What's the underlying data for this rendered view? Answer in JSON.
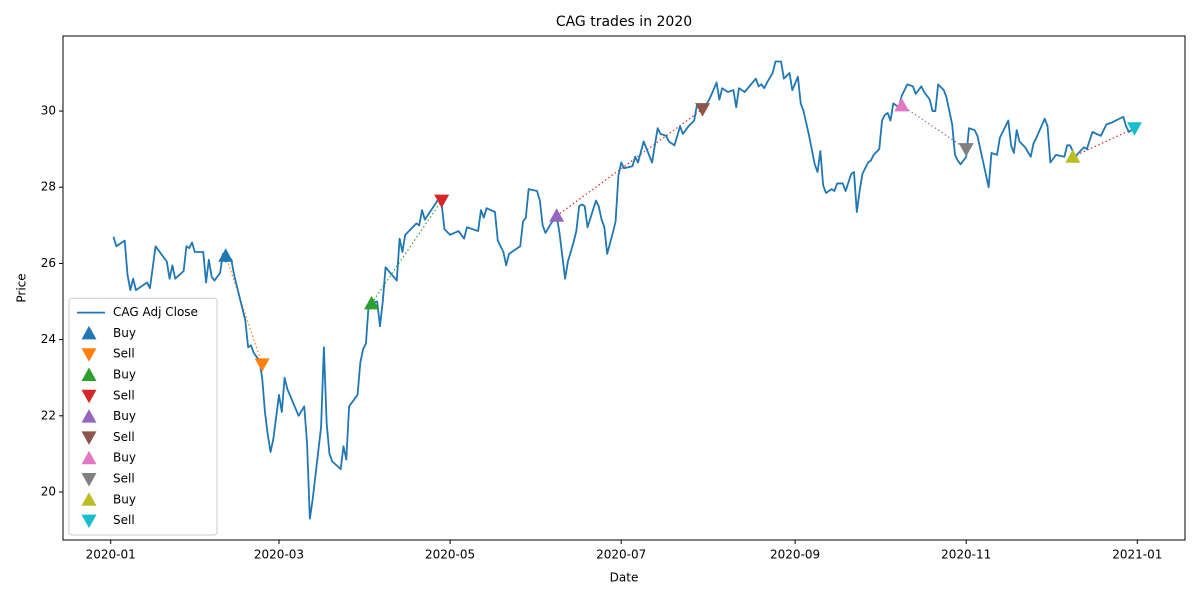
{
  "chart_data": {
    "type": "line",
    "title": "CAG trades in 2020",
    "xlabel": "Date",
    "ylabel": "Price",
    "xlim": [
      18245,
      18645
    ],
    "ylim": [
      18.74,
      31.97
    ],
    "xticks": [
      {
        "value": 18262,
        "label": "2020-01"
      },
      {
        "value": 18322,
        "label": "2020-03"
      },
      {
        "value": 18383,
        "label": "2020-05"
      },
      {
        "value": 18444,
        "label": "2020-07"
      },
      {
        "value": 18506,
        "label": "2020-09"
      },
      {
        "value": 18567,
        "label": "2020-11"
      },
      {
        "value": 18628,
        "label": "2021-01"
      }
    ],
    "yticks": [
      20,
      22,
      24,
      26,
      28,
      30
    ],
    "grid": false,
    "legend": "lower left",
    "series": [
      {
        "name": "CAG Adj Close",
        "color": "#1f77b4",
        "x": [
          18263,
          18264,
          18267,
          18268,
          18269,
          18270,
          18271,
          18275,
          18276,
          18278,
          18282,
          18283,
          18284,
          18285,
          18288,
          18289,
          18290,
          18291,
          18292,
          18295,
          18296,
          18297,
          18298,
          18299,
          18301,
          18302,
          18303,
          18305,
          18306,
          18310,
          18311,
          18312,
          18313,
          18315,
          18316,
          18317,
          18318,
          18319,
          18320,
          18322,
          18323,
          18324,
          18325,
          18329,
          18331,
          18332,
          18333,
          18334,
          18337,
          18338,
          18339,
          18340,
          18341,
          18344,
          18345,
          18346,
          18347,
          18350,
          18351,
          18352,
          18353,
          18354,
          18357,
          18358,
          18359,
          18360,
          18364,
          18365,
          18366,
          18367,
          18371,
          18372,
          18373,
          18374,
          18379,
          18380,
          18381,
          18383,
          18386,
          18388,
          18389,
          18393,
          18394,
          18395,
          18396,
          18399,
          18400,
          18402,
          18403,
          18404,
          18408,
          18409,
          18410,
          18411,
          18414,
          18415,
          18416,
          18417,
          18419,
          18421,
          18422,
          18424,
          18425,
          18427,
          18428,
          18429,
          18430,
          18431,
          18432,
          18435,
          18436,
          18437,
          18438,
          18439,
          18441,
          18442,
          18443,
          18444,
          18445,
          18448,
          18449,
          18450,
          18452,
          18455,
          18457,
          18458,
          18460,
          18461,
          18463,
          18465,
          18466,
          18468,
          18470,
          18471,
          18473,
          18475,
          18476,
          18478,
          18479,
          18480,
          18482,
          18484,
          18485,
          18486,
          18488,
          18492,
          18493,
          18494,
          18495,
          18496,
          18498,
          18499,
          18501,
          18502,
          18504,
          18505,
          18507,
          18508,
          18509,
          18511,
          18513,
          18514,
          18515,
          18516,
          18517,
          18519,
          18520,
          18521,
          18523,
          18524,
          18526,
          18527,
          18528,
          18529,
          18530,
          18532,
          18533,
          18534,
          18536,
          18537,
          18538,
          18539,
          18540,
          18541,
          18543,
          18544,
          18546,
          18548,
          18549,
          18550,
          18551,
          18552,
          18554,
          18555,
          18556,
          18557,
          18559,
          18560,
          18562,
          18563,
          18564,
          18565,
          18567,
          18568,
          18570,
          18571,
          18575,
          18576,
          18578,
          18579,
          18582,
          18583,
          18584,
          18585,
          18586,
          18588,
          18590,
          18591,
          18592,
          18595,
          18596,
          18597,
          18599,
          18602,
          18603,
          18604,
          18606,
          18607,
          18609,
          18610,
          18612,
          18615,
          18617,
          18619,
          18623,
          18624,
          18625,
          18627
        ],
        "values": [
          26.7,
          26.45,
          26.6,
          25.7,
          25.3,
          25.6,
          25.3,
          25.5,
          25.35,
          26.45,
          26.05,
          25.6,
          25.95,
          25.6,
          25.8,
          26.45,
          26.4,
          26.55,
          26.3,
          26.3,
          25.5,
          26.1,
          25.65,
          25.55,
          25.75,
          26.25,
          26.05,
          26.1,
          25.7,
          24.5,
          23.8,
          23.85,
          23.65,
          23.45,
          23.0,
          22.1,
          21.5,
          21.05,
          21.4,
          22.55,
          22.1,
          23.0,
          22.7,
          22.0,
          22.25,
          21.3,
          19.3,
          19.8,
          21.7,
          23.8,
          21.8,
          21.0,
          20.8,
          20.6,
          21.2,
          20.85,
          22.25,
          22.55,
          23.4,
          23.75,
          23.9,
          24.95,
          25.0,
          24.35,
          25.0,
          25.9,
          25.55,
          26.65,
          26.3,
          26.75,
          27.05,
          27.0,
          27.4,
          27.15,
          27.7,
          27.55,
          26.9,
          26.75,
          26.85,
          26.65,
          26.95,
          26.85,
          27.4,
          27.2,
          27.45,
          27.35,
          26.6,
          26.3,
          25.95,
          26.25,
          26.45,
          27.1,
          27.2,
          27.95,
          27.9,
          27.65,
          27.0,
          26.8,
          27.05,
          27.25,
          26.8,
          25.6,
          26.05,
          26.55,
          26.85,
          27.5,
          27.55,
          27.5,
          26.95,
          27.65,
          27.5,
          27.15,
          26.95,
          26.25,
          26.8,
          27.1,
          28.3,
          28.65,
          28.5,
          28.55,
          28.8,
          28.65,
          29.2,
          28.65,
          29.55,
          29.4,
          29.35,
          29.2,
          29.1,
          29.6,
          29.4,
          29.6,
          29.75,
          30.15,
          30.05,
          30.25,
          30.4,
          30.75,
          30.3,
          30.6,
          30.5,
          30.55,
          30.1,
          30.6,
          30.5,
          30.85,
          30.65,
          30.7,
          30.6,
          30.75,
          31.0,
          31.3,
          31.3,
          30.85,
          31.0,
          30.55,
          30.9,
          30.2,
          30.0,
          29.35,
          28.6,
          28.4,
          28.95,
          28.05,
          27.85,
          27.95,
          27.9,
          28.1,
          28.1,
          27.9,
          28.35,
          28.4,
          27.35,
          27.9,
          28.35,
          28.65,
          28.7,
          28.85,
          29.0,
          29.75,
          29.9,
          29.95,
          29.75,
          30.2,
          30.1,
          30.4,
          30.7,
          30.65,
          30.45,
          30.55,
          30.65,
          30.5,
          30.3,
          30.0,
          30.0,
          30.7,
          30.55,
          30.35,
          29.65,
          28.85,
          28.7,
          28.6,
          28.8,
          29.55,
          29.5,
          29.35,
          28.0,
          28.9,
          28.85,
          29.3,
          29.75,
          29.1,
          28.9,
          29.5,
          29.2,
          29.05,
          28.8,
          29.15,
          29.3,
          29.8,
          29.6,
          28.65,
          28.85,
          28.8,
          29.1,
          29.1,
          28.8,
          28.9,
          29.05,
          29.0,
          29.45,
          29.35,
          29.65,
          29.7,
          29.85,
          29.6,
          29.45,
          29.55
        ]
      },
      {
        "name": "Buy",
        "marker": "^",
        "color": "#1f77b4",
        "x": [
          18303
        ],
        "values": [
          26.2
        ]
      },
      {
        "name": "Sell",
        "marker": "v",
        "color": "#ff7f0e",
        "link_color": "#ff7f0e",
        "x": [
          18316
        ],
        "values": [
          23.35
        ]
      },
      {
        "name": "Buy",
        "marker": "^",
        "color": "#2ca02c",
        "x": [
          18355
        ],
        "values": [
          24.95
        ]
      },
      {
        "name": "Sell",
        "marker": "v",
        "color": "#d62728",
        "link_color": "#2ca02c",
        "x": [
          18380
        ],
        "values": [
          27.65
        ]
      },
      {
        "name": "Buy",
        "marker": "^",
        "color": "#9467bd",
        "x": [
          18421
        ],
        "values": [
          27.25
        ]
      },
      {
        "name": "Sell",
        "marker": "v",
        "color": "#8c564b",
        "link_color": "#d62728",
        "x": [
          18473
        ],
        "values": [
          30.05
        ]
      },
      {
        "name": "Buy",
        "marker": "^",
        "color": "#e377c2",
        "x": [
          18544
        ],
        "values": [
          30.15
        ]
      },
      {
        "name": "Sell",
        "marker": "v",
        "color": "#7f7f7f",
        "link_color": "#9467bd",
        "x": [
          18567
        ],
        "values": [
          29.0
        ]
      },
      {
        "name": "Buy",
        "marker": "^",
        "color": "#bcbd22",
        "x": [
          18605
        ],
        "values": [
          28.8
        ]
      },
      {
        "name": "Sell",
        "marker": "v",
        "color": "#17becf",
        "link_color": "#d62728",
        "x": [
          18627
        ],
        "values": [
          29.55
        ]
      }
    ]
  }
}
